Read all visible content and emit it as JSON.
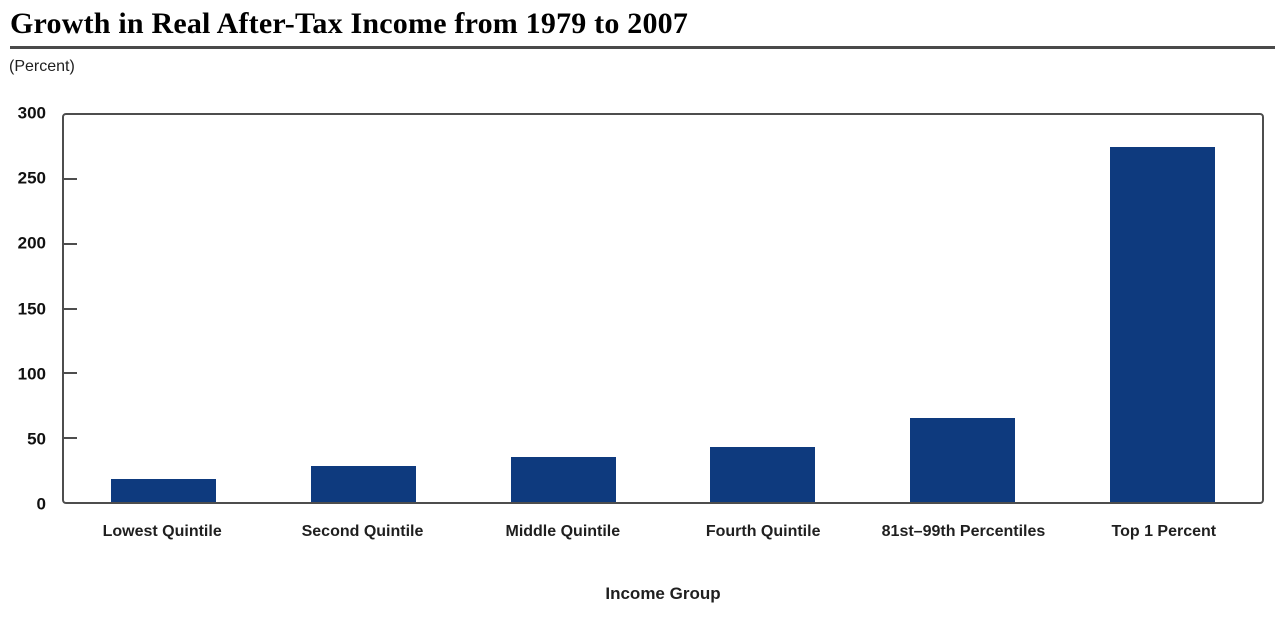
{
  "chart_data": {
    "type": "bar",
    "title": "Growth in Real After-Tax Income from 1979 to 2007",
    "unit_label": "(Percent)",
    "xlabel": "Income Group",
    "ylabel": "(Percent)",
    "categories": [
      "Lowest Quintile",
      "Second Quintile",
      "Middle Quintile",
      "Fourth Quintile",
      "81st–99th Percentiles",
      "Top 1 Percent"
    ],
    "values": [
      18,
      28,
      35,
      43,
      65,
      275
    ],
    "ylim": [
      0,
      300
    ],
    "yticks": [
      0,
      50,
      100,
      150,
      200,
      250,
      300
    ],
    "grid": false,
    "legend": "none",
    "bar_color": "#0e3a7e",
    "axis_color": "#4d4d4d",
    "title_rule_color": "#4a4a4a"
  }
}
